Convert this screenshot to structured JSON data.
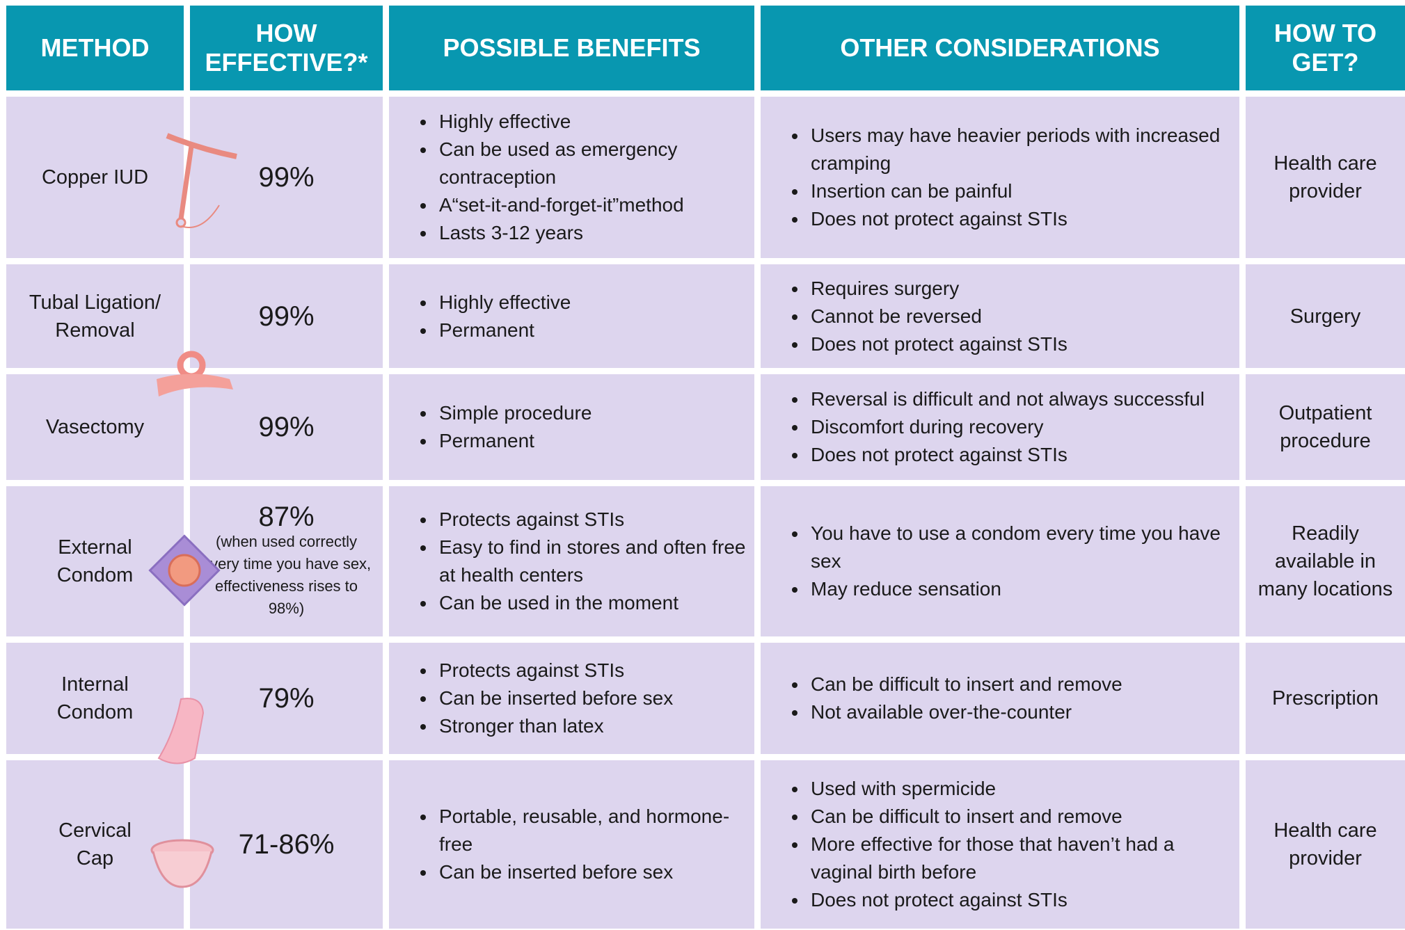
{
  "table": {
    "headers": [
      [
        "METHOD"
      ],
      [
        "HOW",
        "EFFECTIVE?*"
      ],
      [
        "POSSIBLE BENEFITS"
      ],
      [
        "OTHER CONSIDERATIONS"
      ],
      [
        "HOW TO",
        "GET?"
      ]
    ],
    "rows": [
      {
        "method": [
          "Copper IUD"
        ],
        "effectiveness": "99%",
        "benefits": [
          "Highly effective",
          "Can be used as emergency contraception",
          "A“set-it-and-forget-it”method",
          "Lasts 3-12 years"
        ],
        "considerations": [
          "Users may have heavier periods with increased cramping",
          "Insertion can be painful",
          "Does not protect against STIs"
        ],
        "how_to_get": [
          "Health care",
          "provider"
        ]
      },
      {
        "method": [
          "Tubal Ligation/",
          "Removal"
        ],
        "effectiveness": "99%",
        "benefits": [
          "Highly effective",
          "Permanent"
        ],
        "considerations": [
          "Requires surgery",
          "Cannot be reversed",
          "Does not protect against STIs"
        ],
        "how_to_get": [
          "Surgery"
        ]
      },
      {
        "method": [
          "Vasectomy"
        ],
        "effectiveness": "99%",
        "benefits": [
          "Simple procedure",
          "Permanent"
        ],
        "considerations": [
          "Reversal is difficult and not always successful",
          "Discomfort during recovery",
          "Does not protect against STIs"
        ],
        "how_to_get": [
          "Outpatient",
          "procedure"
        ]
      },
      {
        "method": [
          "External",
          "Condom"
        ],
        "effectiveness": "87%",
        "effectiveness_note": "(when used correctly every time you have sex, effectiveness rises to 98%)",
        "benefits": [
          "Protects against STIs",
          "Easy to find in stores and often free at health centers",
          "Can be used in the moment"
        ],
        "considerations": [
          "You have to use a condom every time you have sex",
          "May reduce sensation"
        ],
        "how_to_get": [
          "Readily",
          "available in",
          "many locations"
        ]
      },
      {
        "method": [
          "Internal",
          "Condom"
        ],
        "effectiveness": "79%",
        "benefits": [
          "Protects against STIs",
          "Can be inserted before sex",
          "Stronger than latex"
        ],
        "considerations": [
          "Can be difficult to insert and remove",
          "Not available over-the-counter"
        ],
        "how_to_get": [
          "Prescription"
        ]
      },
      {
        "method": [
          "Cervical",
          "Cap"
        ],
        "effectiveness": "71-86%",
        "benefits": [
          "Portable, reusable, and hormone-free",
          "Can be inserted before sex"
        ],
        "considerations": [
          "Used with spermicide",
          "Can be difficult to insert and remove",
          "More effective for those that haven’t had a vaginal birth before",
          "Does not protect against STIs"
        ],
        "how_to_get": [
          "Health care",
          "provider"
        ]
      }
    ]
  }
}
